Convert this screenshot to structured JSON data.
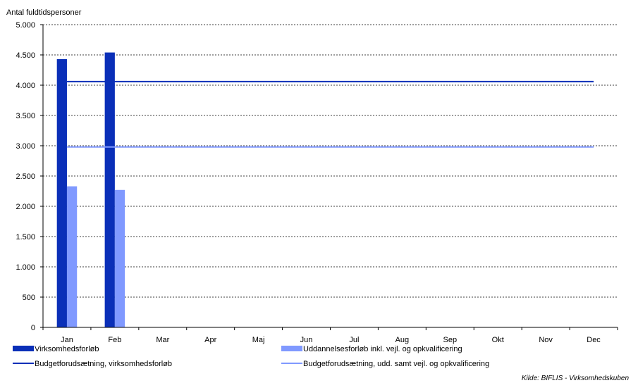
{
  "chart_data": {
    "type": "bar",
    "ylabel": "Antal fuldtidspersoner",
    "categories": [
      "Jan",
      "Feb",
      "Mar",
      "Apr",
      "Maj",
      "Jun",
      "Jul",
      "Aug",
      "Sep",
      "Okt",
      "Nov",
      "Dec"
    ],
    "ylim": [
      0,
      5000
    ],
    "yticks": [
      0,
      500,
      1000,
      1500,
      2000,
      2500,
      3000,
      3500,
      4000,
      4500,
      5000
    ],
    "ytick_labels": [
      "0",
      "500",
      "1.000",
      "1.500",
      "2.000",
      "2.500",
      "3.000",
      "3.500",
      "4.000",
      "4.500",
      "5.000"
    ],
    "grid": true,
    "legend_position": "bottom",
    "bar_series": [
      {
        "name": "Virksomhedsforløb",
        "color": "#0a2fb8",
        "values": [
          4430,
          4540,
          null,
          null,
          null,
          null,
          null,
          null,
          null,
          null,
          null,
          null
        ]
      },
      {
        "name": "Uddannelsesforløb inkl. vejl. og opkvalificering",
        "color": "#8099ff",
        "values": [
          2330,
          2270,
          null,
          null,
          null,
          null,
          null,
          null,
          null,
          null,
          null,
          null
        ]
      }
    ],
    "line_series": [
      {
        "name": "Budgetforudsætning, virksomhedsforløb",
        "color": "#0a2fb8",
        "values": [
          4060,
          4060,
          4060,
          4060,
          4060,
          4060,
          4060,
          4060,
          4060,
          4060,
          4060,
          4060
        ]
      },
      {
        "name": "Budgetforudsætning, udd. samt vejl. og opkvalificering",
        "color": "#8099ff",
        "values": [
          2980,
          2980,
          2980,
          2980,
          2980,
          2980,
          2980,
          2980,
          2980,
          2980,
          2980,
          2980
        ]
      }
    ],
    "source": "Kilde:  BIFLIS - Virksomhedskuben"
  }
}
